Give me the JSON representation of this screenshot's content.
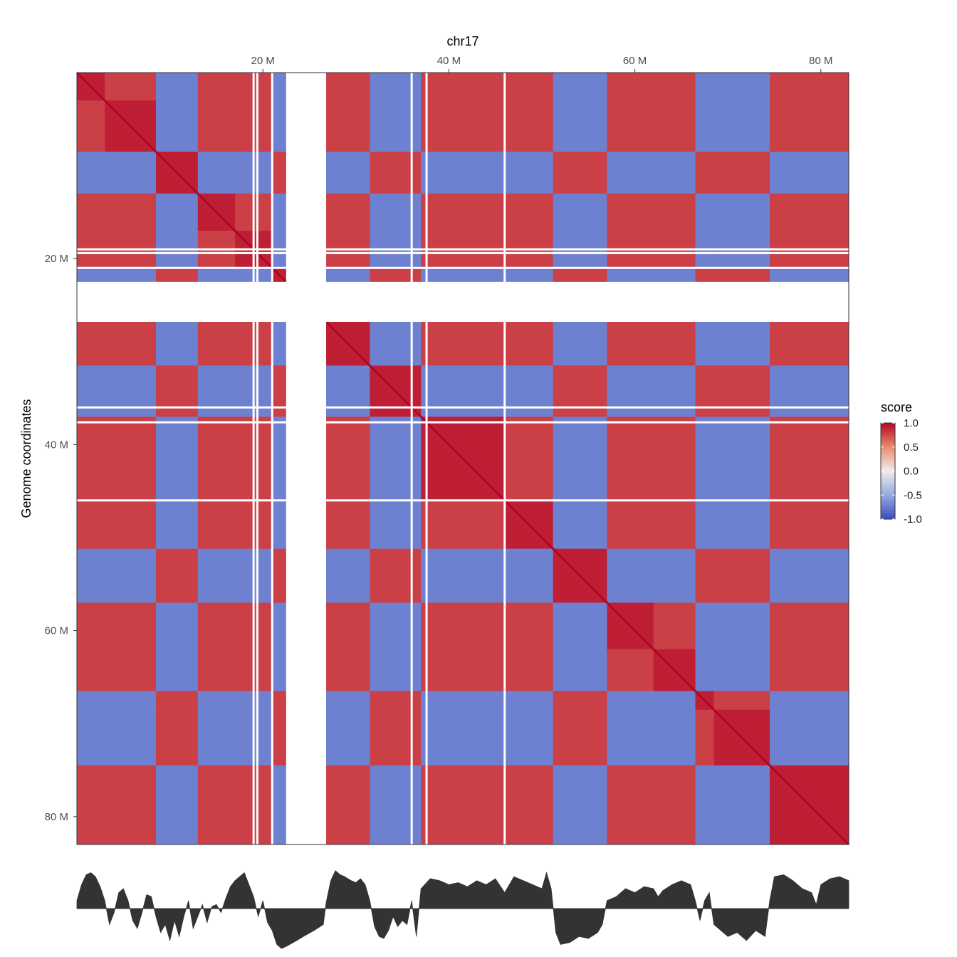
{
  "chart_data": [
    {
      "type": "heatmap",
      "title": "chr17",
      "xlabel": "",
      "ylabel": "Genome coordinates",
      "x_ticks": [
        "20 M",
        "40 M",
        "60 M",
        "80 M"
      ],
      "y_ticks": [
        "20 M",
        "40 M",
        "60 M",
        "80 M"
      ],
      "tick_values_mb": [
        20,
        40,
        60,
        80
      ],
      "range_mb": [
        0,
        83
      ],
      "empty_band_mb": [
        22.5,
        26.8
      ],
      "thin_gaps_mb": [
        19.0,
        19.4,
        21.0,
        36.0,
        37.6,
        46.0
      ],
      "compartments": {
        "boundaries_mb": [
          0,
          3,
          8.5,
          13,
          17,
          21,
          26.8,
          31.5,
          37,
          46,
          51.2,
          57,
          62,
          66.5,
          68.5,
          74.5,
          83
        ],
        "sign": [
          1,
          1,
          -1,
          1,
          1,
          -1,
          1,
          -1,
          1,
          1,
          -1,
          1,
          1,
          -1,
          -1,
          1
        ]
      },
      "legend": {
        "title": "score",
        "labels": [
          "1.0",
          "0.5",
          "0.0",
          "-0.5",
          "-1.0"
        ],
        "values": [
          1.0,
          0.5,
          0.0,
          -0.5,
          -1.0
        ],
        "colors": {
          "low": "#3b4cc0",
          "mid": "#f2f2f2",
          "high": "#b40426"
        }
      }
    },
    {
      "type": "area",
      "name": "compartment track",
      "x_range_mb": [
        0,
        83
      ],
      "x_mb": [
        0,
        0.5,
        1.0,
        1.5,
        2.0,
        2.5,
        3.0,
        3.5,
        4.0,
        4.5,
        5.0,
        5.5,
        6.0,
        6.5,
        7.0,
        7.5,
        8.0,
        8.5,
        9.0,
        9.5,
        10.0,
        10.5,
        11.0,
        11.5,
        12.0,
        12.5,
        13.0,
        13.5,
        14.0,
        14.5,
        15.0,
        15.5,
        16.0,
        16.5,
        17.0,
        17.5,
        18.0,
        18.5,
        19.0,
        19.5,
        20.0,
        20.5,
        21.0,
        21.5,
        22.0,
        22.5,
        23.5,
        24.5,
        25.5,
        26.5,
        26.8,
        27.3,
        27.8,
        28.3,
        28.8,
        29.5,
        30.0,
        30.5,
        31.0,
        31.5,
        32.0,
        32.5,
        33.0,
        33.5,
        34.0,
        34.5,
        35.0,
        35.5,
        36.0,
        36.5,
        37.0,
        38.0,
        39.0,
        40.0,
        41.0,
        42.0,
        43.0,
        44.0,
        45.0,
        46.0,
        47.0,
        48.0,
        49.0,
        50.0,
        50.5,
        51.0,
        51.5,
        52.0,
        53.0,
        54.0,
        55.0,
        56.0,
        56.5,
        57.0,
        58.0,
        59.0,
        60.0,
        61.0,
        62.0,
        62.5,
        63.0,
        64.0,
        65.0,
        66.0,
        66.5,
        67.0,
        67.5,
        68.0,
        68.5,
        69.0,
        70.0,
        71.0,
        72.0,
        73.0,
        74.0,
        74.5,
        75.0,
        76.0,
        77.0,
        78.0,
        79.0,
        79.5,
        80.0,
        81.0,
        82.0,
        83.0
      ],
      "values": [
        0.2,
        0.6,
        0.85,
        0.9,
        0.8,
        0.55,
        0.2,
        -0.4,
        -0.1,
        0.4,
        0.5,
        0.2,
        -0.3,
        -0.5,
        -0.1,
        0.35,
        0.3,
        -0.2,
        -0.6,
        -0.4,
        -0.8,
        -0.3,
        -0.7,
        -0.2,
        0.2,
        -0.5,
        -0.2,
        0.1,
        -0.35,
        0.05,
        0.1,
        -0.1,
        0.25,
        0.55,
        0.7,
        0.8,
        0.9,
        0.6,
        0.3,
        -0.2,
        0.2,
        -0.35,
        -0.55,
        -0.9,
        -1.0,
        -0.95,
        -0.82,
        -0.68,
        -0.55,
        -0.4,
        0.15,
        0.7,
        0.95,
        0.85,
        0.8,
        0.7,
        0.65,
        0.75,
        0.6,
        0.2,
        -0.45,
        -0.7,
        -0.75,
        -0.55,
        -0.2,
        -0.45,
        -0.3,
        -0.4,
        0.2,
        -0.7,
        0.5,
        0.75,
        0.7,
        0.6,
        0.65,
        0.55,
        0.7,
        0.6,
        0.75,
        0.4,
        0.8,
        0.7,
        0.6,
        0.5,
        0.9,
        0.5,
        -0.6,
        -0.9,
        -0.85,
        -0.7,
        -0.75,
        -0.6,
        -0.4,
        0.2,
        0.3,
        0.5,
        0.4,
        0.55,
        0.5,
        0.3,
        0.45,
        0.6,
        0.7,
        0.6,
        0.2,
        -0.3,
        0.2,
        0.4,
        -0.4,
        -0.5,
        -0.7,
        -0.6,
        -0.8,
        -0.55,
        -0.7,
        0.2,
        0.8,
        0.85,
        0.7,
        0.5,
        0.4,
        0.1,
        0.6,
        0.75,
        0.8,
        0.7
      ]
    }
  ]
}
